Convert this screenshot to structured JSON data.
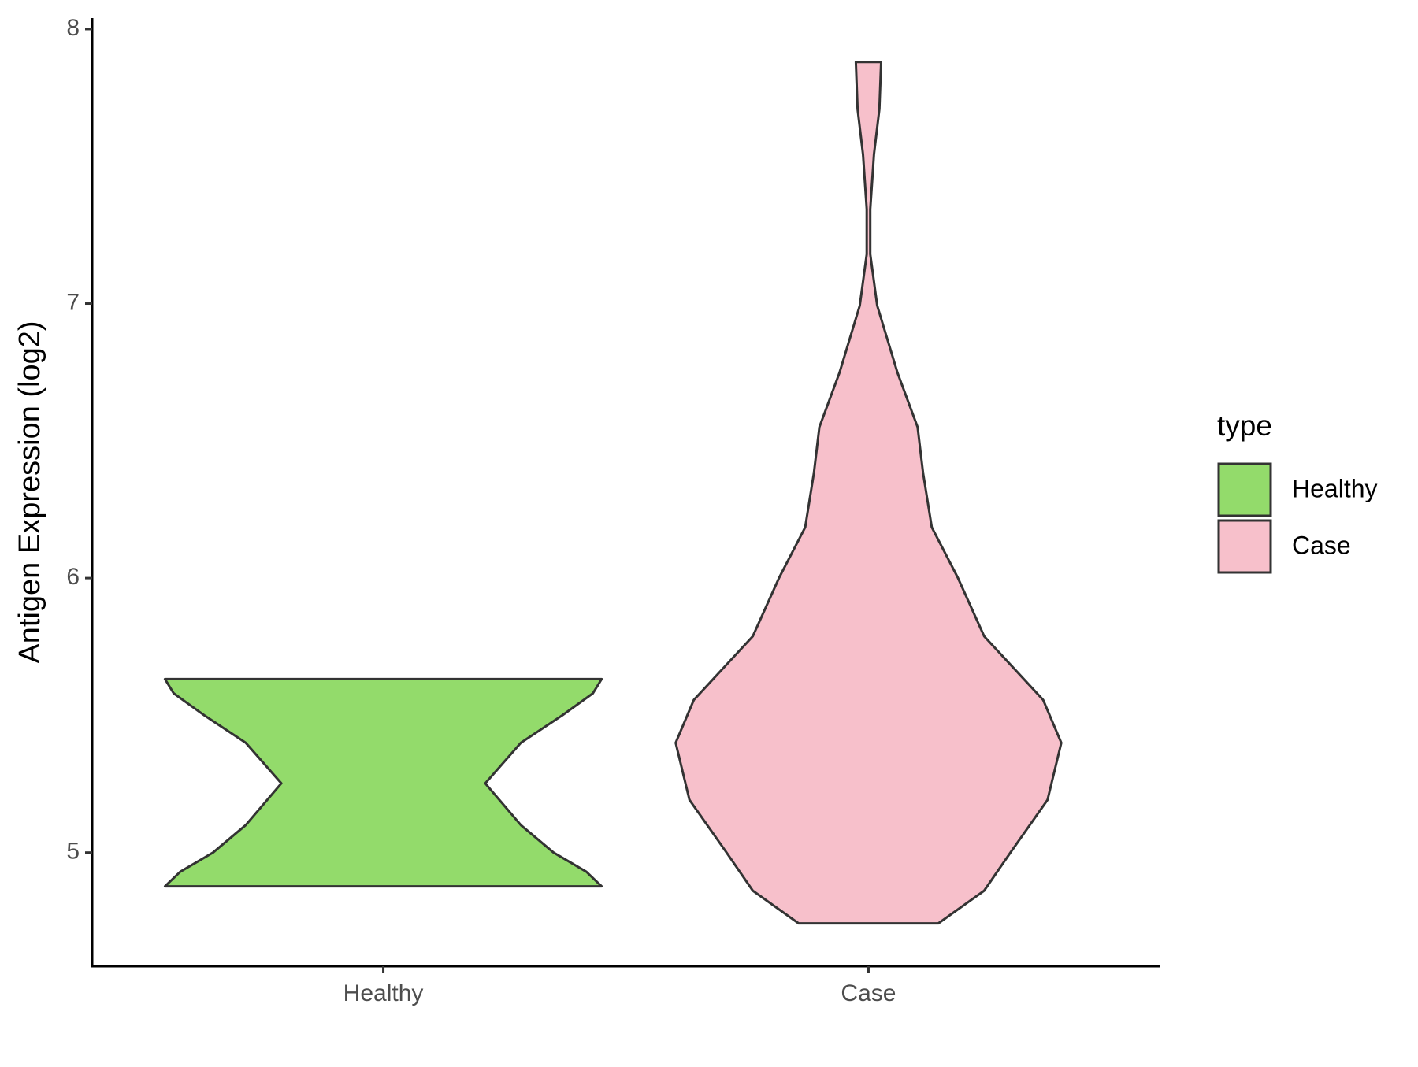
{
  "chart_data": {
    "type": "violin",
    "y_label": "Antigen Expression (log2)",
    "categories": [
      "Healthy",
      "Case"
    ],
    "series": [
      {
        "name": "Healthy",
        "color": "#93db6b",
        "y": [
          4.877,
          4.93,
          5.0,
          5.1,
          5.252,
          5.4,
          5.5,
          5.58,
          5.632
        ],
        "width": [
          1.0,
          0.93,
          0.78,
          0.63,
          0.467,
          0.63,
          0.82,
          0.96,
          1.0
        ]
      },
      {
        "name": "Case",
        "color": "#f7c0cb",
        "y": [
          4.742,
          4.861,
          5.0,
          5.192,
          5.4,
          5.556,
          5.788,
          6.0,
          6.185,
          6.384,
          6.55,
          6.748,
          6.993,
          7.18,
          7.344,
          7.543,
          7.709,
          7.88
        ],
        "width": [
          0.32,
          0.53,
          0.65,
          0.82,
          0.883,
          0.8,
          0.53,
          0.41,
          0.29,
          0.25,
          0.225,
          0.133,
          0.04,
          0.008,
          0.008,
          0.025,
          0.05,
          0.058
        ]
      }
    ],
    "ylim": [
      4.586,
      8.04
    ],
    "yticks": [
      5,
      6,
      7,
      8
    ],
    "legend_title": "type",
    "legend": "right"
  }
}
